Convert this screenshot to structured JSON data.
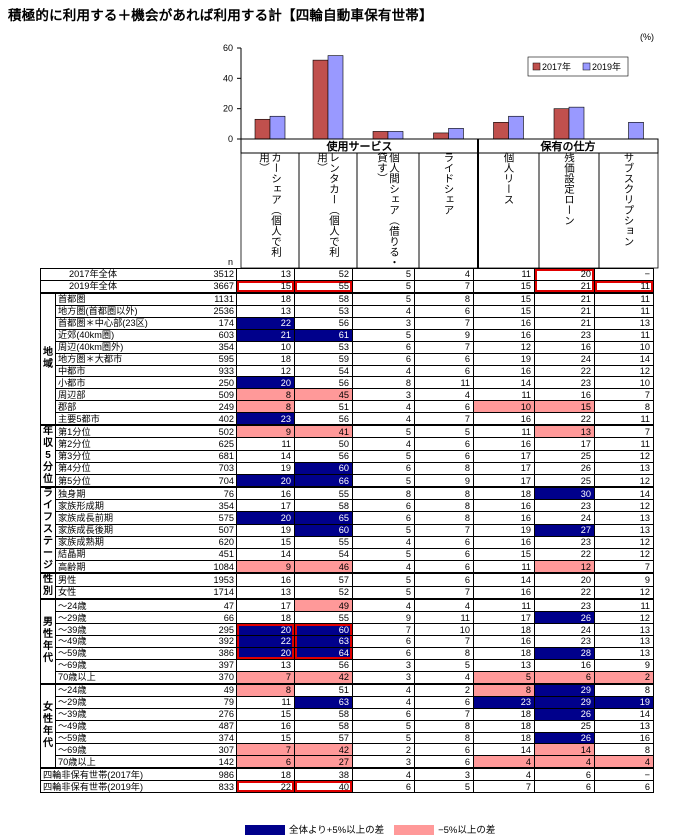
{
  "title": "積極的に利用する＋機会があれば利用する計【四輪自動車保有世帯】",
  "unit": "(%)",
  "n_label": "n",
  "chart_data": {
    "type": "bar",
    "categories": [
      "カーシェア（個人で利用）",
      "レンタカー（個人で利用）",
      "個人間シェア（借りる・貸す）",
      "ライドシェア",
      "個人リース",
      "残価設定ローン",
      "サブスクリプション"
    ],
    "series": [
      {
        "name": "2017年",
        "values": [
          13,
          52,
          5,
          4,
          11,
          20,
          null
        ],
        "color": "#c0504d"
      },
      {
        "name": "2019年",
        "values": [
          15,
          55,
          5,
          7,
          15,
          21,
          11
        ],
        "color": "#9999ff"
      }
    ],
    "yticks": [
      0,
      20,
      40,
      60
    ],
    "ylim": [
      0,
      60
    ],
    "legend_position": "top-right",
    "groups": [
      {
        "label": "使用サービス",
        "span": 4
      },
      {
        "label": "保有の仕方",
        "span": 3
      }
    ]
  },
  "column_headers": [
    "カーシェア（個人で利用）",
    "レンタカー（個人で利用）",
    "個人間シェア（借りる・貸す）",
    "ライドシェア",
    "個人リース",
    "残価設定ローン",
    "サブスクリプション"
  ],
  "rows": [
    {
      "group": "",
      "label": "2017年全体",
      "n": "3512",
      "vals": [
        "13",
        "52",
        "5",
        "4",
        "11",
        "20",
        "−"
      ],
      "hl": [
        "",
        "",
        "",
        "",
        "",
        "",
        "",
        ""
      ],
      "box": [
        "",
        "",
        "",
        "",
        "",
        "ot",
        ""
      ]
    },
    {
      "group": "",
      "label": "2019年全体",
      "n": "3667",
      "vals": [
        "15",
        "55",
        "5",
        "7",
        "15",
        "21",
        "11"
      ],
      "hl": [
        "",
        "",
        "",
        "",
        "",
        "",
        "",
        ""
      ],
      "box": [
        "os",
        "os",
        "",
        "",
        "",
        "ob",
        "os"
      ]
    },
    {
      "group": "地域",
      "label": "首都圏",
      "n": "1131",
      "vals": [
        "18",
        "58",
        "5",
        "8",
        "15",
        "21",
        "11"
      ],
      "hl": [
        "",
        "",
        "",
        "",
        "",
        "",
        ""
      ]
    },
    {
      "group": "地域",
      "label": "地方圏(首都圏以外)",
      "n": "2536",
      "vals": [
        "13",
        "53",
        "4",
        "6",
        "15",
        "21",
        "11"
      ],
      "hl": [
        "",
        "",
        "",
        "",
        "",
        "",
        ""
      ]
    },
    {
      "group": "地域",
      "label": "首都圏＊中心部(23区)",
      "n": "174",
      "vals": [
        "22",
        "56",
        "3",
        "7",
        "16",
        "21",
        "13"
      ],
      "hl": [
        "blue",
        "",
        "",
        "",
        "",
        "",
        ""
      ]
    },
    {
      "group": "地域",
      "label": "近郊(40km圏)",
      "n": "603",
      "vals": [
        "21",
        "61",
        "5",
        "9",
        "16",
        "23",
        "11"
      ],
      "hl": [
        "blue",
        "blue",
        "",
        "",
        "",
        "",
        ""
      ]
    },
    {
      "group": "地域",
      "label": "周辺(40km圏外)",
      "n": "354",
      "vals": [
        "10",
        "53",
        "6",
        "7",
        "12",
        "16",
        "10"
      ],
      "hl": [
        "",
        "",
        "",
        "",
        "",
        "",
        ""
      ]
    },
    {
      "group": "地域",
      "label": "地方圏＊大都市",
      "n": "595",
      "vals": [
        "18",
        "59",
        "6",
        "6",
        "19",
        "24",
        "14"
      ],
      "hl": [
        "",
        "",
        "",
        "",
        "",
        "",
        ""
      ]
    },
    {
      "group": "地域",
      "label": "中都市",
      "n": "933",
      "vals": [
        "12",
        "54",
        "4",
        "6",
        "16",
        "22",
        "12"
      ],
      "hl": [
        "",
        "",
        "",
        "",
        "",
        "",
        ""
      ]
    },
    {
      "group": "地域",
      "label": "小都市",
      "n": "250",
      "vals": [
        "20",
        "56",
        "8",
        "11",
        "14",
        "23",
        "10"
      ],
      "hl": [
        "blue",
        "",
        "",
        "",
        "",
        "",
        ""
      ]
    },
    {
      "group": "地域",
      "label": "周辺部",
      "n": "509",
      "vals": [
        "8",
        "45",
        "3",
        "4",
        "11",
        "16",
        "7"
      ],
      "hl": [
        "pink",
        "pink",
        "",
        "",
        "",
        "",
        ""
      ]
    },
    {
      "group": "地域",
      "label": "郡部",
      "n": "249",
      "vals": [
        "8",
        "51",
        "4",
        "6",
        "10",
        "15",
        "8"
      ],
      "hl": [
        "pink",
        "",
        "",
        "",
        "pink",
        "pink",
        ""
      ]
    },
    {
      "group": "地域",
      "label": "主要5都市",
      "n": "402",
      "vals": [
        "23",
        "56",
        "4",
        "7",
        "16",
        "22",
        "11"
      ],
      "hl": [
        "blue",
        "",
        "",
        "",
        "",
        "",
        ""
      ]
    },
    {
      "group": "年収5分位",
      "label": "第1分位",
      "n": "502",
      "vals": [
        "9",
        "41",
        "5",
        "5",
        "11",
        "13",
        "7"
      ],
      "hl": [
        "pink",
        "pink",
        "",
        "",
        "",
        "pink",
        ""
      ]
    },
    {
      "group": "年収5分位",
      "label": "第2分位",
      "n": "625",
      "vals": [
        "11",
        "50",
        "4",
        "6",
        "16",
        "17",
        "11"
      ],
      "hl": [
        "",
        "",
        "",
        "",
        "",
        "",
        ""
      ]
    },
    {
      "group": "年収5分位",
      "label": "第3分位",
      "n": "681",
      "vals": [
        "14",
        "56",
        "5",
        "6",
        "17",
        "25",
        "12"
      ],
      "hl": [
        "",
        "",
        "",
        "",
        "",
        "",
        ""
      ]
    },
    {
      "group": "年収5分位",
      "label": "第4分位",
      "n": "703",
      "vals": [
        "19",
        "60",
        "6",
        "8",
        "17",
        "26",
        "13"
      ],
      "hl": [
        "",
        "blue",
        "",
        "",
        "",
        "",
        ""
      ]
    },
    {
      "group": "年収5分位",
      "label": "第5分位",
      "n": "704",
      "vals": [
        "20",
        "66",
        "5",
        "9",
        "17",
        "25",
        "12"
      ],
      "hl": [
        "blue",
        "blue",
        "",
        "",
        "",
        "",
        ""
      ]
    },
    {
      "group": "ライフステージ",
      "label": "独身期",
      "n": "76",
      "vals": [
        "16",
        "55",
        "8",
        "8",
        "18",
        "30",
        "14"
      ],
      "hl": [
        "",
        "",
        "",
        "",
        "",
        "blue",
        ""
      ]
    },
    {
      "group": "ライフステージ",
      "label": "家族形成期",
      "n": "354",
      "vals": [
        "17",
        "58",
        "6",
        "8",
        "16",
        "23",
        "12"
      ],
      "hl": [
        "",
        "",
        "",
        "",
        "",
        "",
        ""
      ]
    },
    {
      "group": "ライフステージ",
      "label": "家族成長前期",
      "n": "575",
      "vals": [
        "20",
        "65",
        "6",
        "8",
        "16",
        "24",
        "13"
      ],
      "hl": [
        "blue",
        "blue",
        "",
        "",
        "",
        "",
        ""
      ]
    },
    {
      "group": "ライフステージ",
      "label": "家族成長後期",
      "n": "507",
      "vals": [
        "19",
        "60",
        "5",
        "7",
        "19",
        "27",
        "13"
      ],
      "hl": [
        "",
        "blue",
        "",
        "",
        "",
        "blue",
        ""
      ]
    },
    {
      "group": "ライフステージ",
      "label": "家族成熟期",
      "n": "620",
      "vals": [
        "15",
        "55",
        "4",
        "6",
        "16",
        "23",
        "12"
      ],
      "hl": [
        "",
        "",
        "",
        "",
        "",
        "",
        ""
      ]
    },
    {
      "group": "ライフステージ",
      "label": "結晶期",
      "n": "451",
      "vals": [
        "14",
        "54",
        "5",
        "6",
        "15",
        "22",
        "12"
      ],
      "hl": [
        "",
        "",
        "",
        "",
        "",
        "",
        ""
      ]
    },
    {
      "group": "ライフステージ",
      "label": "高齢期",
      "n": "1084",
      "vals": [
        "9",
        "46",
        "4",
        "6",
        "11",
        "12",
        "7"
      ],
      "hl": [
        "pink",
        "pink",
        "",
        "",
        "",
        "pink",
        ""
      ]
    },
    {
      "group": "性別",
      "label": "男性",
      "n": "1953",
      "vals": [
        "16",
        "57",
        "5",
        "6",
        "14",
        "20",
        "9"
      ],
      "hl": [
        "",
        "",
        "",
        "",
        "",
        "",
        ""
      ]
    },
    {
      "group": "性別",
      "label": "女性",
      "n": "1714",
      "vals": [
        "13",
        "52",
        "5",
        "7",
        "16",
        "22",
        "12"
      ],
      "hl": [
        "",
        "",
        "",
        "",
        "",
        "",
        ""
      ]
    },
    {
      "group": "男性年代",
      "label": "～24歳",
      "n": "47",
      "vals": [
        "17",
        "49",
        "4",
        "4",
        "11",
        "23",
        "11"
      ],
      "hl": [
        "",
        "pink",
        "",
        "",
        "",
        "",
        ""
      ]
    },
    {
      "group": "男性年代",
      "label": "～29歳",
      "n": "66",
      "vals": [
        "18",
        "55",
        "9",
        "11",
        "17",
        "26",
        "12"
      ],
      "hl": [
        "",
        "",
        "",
        "",
        "",
        "blue",
        ""
      ]
    },
    {
      "group": "男性年代",
      "label": "～39歳",
      "n": "295",
      "vals": [
        "20",
        "60",
        "7",
        "10",
        "18",
        "24",
        "13"
      ],
      "hl": [
        "blue",
        "blue",
        "",
        "",
        "",
        "",
        ""
      ],
      "box": [
        "ot",
        "ot",
        "",
        "",
        "",
        "",
        ""
      ]
    },
    {
      "group": "男性年代",
      "label": "～49歳",
      "n": "392",
      "vals": [
        "22",
        "63",
        "6",
        "7",
        "16",
        "23",
        "13"
      ],
      "hl": [
        "blue",
        "blue",
        "",
        "",
        "",
        "",
        ""
      ],
      "box": [
        "om",
        "om",
        "",
        "",
        "",
        "",
        ""
      ]
    },
    {
      "group": "男性年代",
      "label": "～59歳",
      "n": "386",
      "vals": [
        "20",
        "64",
        "6",
        "8",
        "18",
        "28",
        "13"
      ],
      "hl": [
        "blue",
        "blue",
        "",
        "",
        "",
        "blue",
        ""
      ],
      "box": [
        "ob",
        "ob",
        "",
        "",
        "",
        "",
        ""
      ]
    },
    {
      "group": "男性年代",
      "label": "～69歳",
      "n": "397",
      "vals": [
        "13",
        "56",
        "3",
        "5",
        "13",
        "16",
        "9"
      ],
      "hl": [
        "",
        "",
        "",
        "",
        "",
        "",
        ""
      ]
    },
    {
      "group": "男性年代",
      "label": "70歳以上",
      "n": "370",
      "vals": [
        "7",
        "42",
        "3",
        "4",
        "5",
        "6",
        "2"
      ],
      "hl": [
        "pink",
        "pink",
        "",
        "",
        "pink",
        "pink",
        "pink"
      ]
    },
    {
      "group": "女性年代",
      "label": "～24歳",
      "n": "49",
      "vals": [
        "8",
        "51",
        "4",
        "2",
        "8",
        "29",
        "8"
      ],
      "hl": [
        "pink",
        "",
        "",
        "",
        "pink",
        "blue",
        ""
      ]
    },
    {
      "group": "女性年代",
      "label": "～29歳",
      "n": "79",
      "vals": [
        "11",
        "63",
        "4",
        "6",
        "23",
        "29",
        "19"
      ],
      "hl": [
        "",
        "blue",
        "",
        "",
        "blue",
        "blue",
        "blue"
      ]
    },
    {
      "group": "女性年代",
      "label": "～39歳",
      "n": "276",
      "vals": [
        "15",
        "58",
        "6",
        "7",
        "18",
        "26",
        "14"
      ],
      "hl": [
        "",
        "",
        "",
        "",
        "",
        "blue",
        ""
      ]
    },
    {
      "group": "女性年代",
      "label": "～49歳",
      "n": "487",
      "vals": [
        "16",
        "58",
        "5",
        "8",
        "18",
        "25",
        "13"
      ],
      "hl": [
        "",
        "",
        "",
        "",
        "",
        "",
        ""
      ]
    },
    {
      "group": "女性年代",
      "label": "～59歳",
      "n": "374",
      "vals": [
        "15",
        "57",
        "5",
        "8",
        "18",
        "26",
        "16"
      ],
      "hl": [
        "",
        "",
        "",
        "",
        "",
        "blue",
        ""
      ]
    },
    {
      "group": "女性年代",
      "label": "～69歳",
      "n": "307",
      "vals": [
        "7",
        "42",
        "2",
        "6",
        "14",
        "14",
        "8"
      ],
      "hl": [
        "pink",
        "pink",
        "",
        "",
        "",
        "pink",
        ""
      ]
    },
    {
      "group": "女性年代",
      "label": "70歳以上",
      "n": "142",
      "vals": [
        "6",
        "27",
        "3",
        "6",
        "4",
        "4",
        "4"
      ],
      "hl": [
        "pink",
        "pink",
        "",
        "",
        "pink",
        "pink",
        "pink"
      ]
    },
    {
      "group": "",
      "label": "四輪非保有世帯(2017年)",
      "n": "986",
      "vals": [
        "18",
        "38",
        "4",
        "3",
        "4",
        "6",
        "−"
      ],
      "hl": [
        "",
        "",
        "",
        "",
        "",
        "",
        ""
      ]
    },
    {
      "group": "",
      "label": "四輪非保有世帯(2019年)",
      "n": "833",
      "vals": [
        "22",
        "40",
        "6",
        "5",
        "7",
        "6",
        "6"
      ],
      "hl": [
        "",
        "",
        "",
        "",
        "",
        "",
        ""
      ],
      "box": [
        "os",
        "os",
        "",
        "",
        "",
        "",
        ""
      ]
    }
  ],
  "group_labels": {
    "地域": "地\n域",
    "年収5分位": "年\n収\n5\n分\n位",
    "ライフステージ": "ラ\nイ\nフ\nス\nテ\nー\nジ",
    "性別": "性\n別",
    "男性年代": "男\n性\n年\n代",
    "女性年代": "女\n性\n年\n代"
  },
  "legend_bottom": [
    {
      "label": "全体より+5%以上の差",
      "color": "#00008b"
    },
    {
      "label": "−5%以上の差",
      "color": "#ff9999"
    }
  ]
}
